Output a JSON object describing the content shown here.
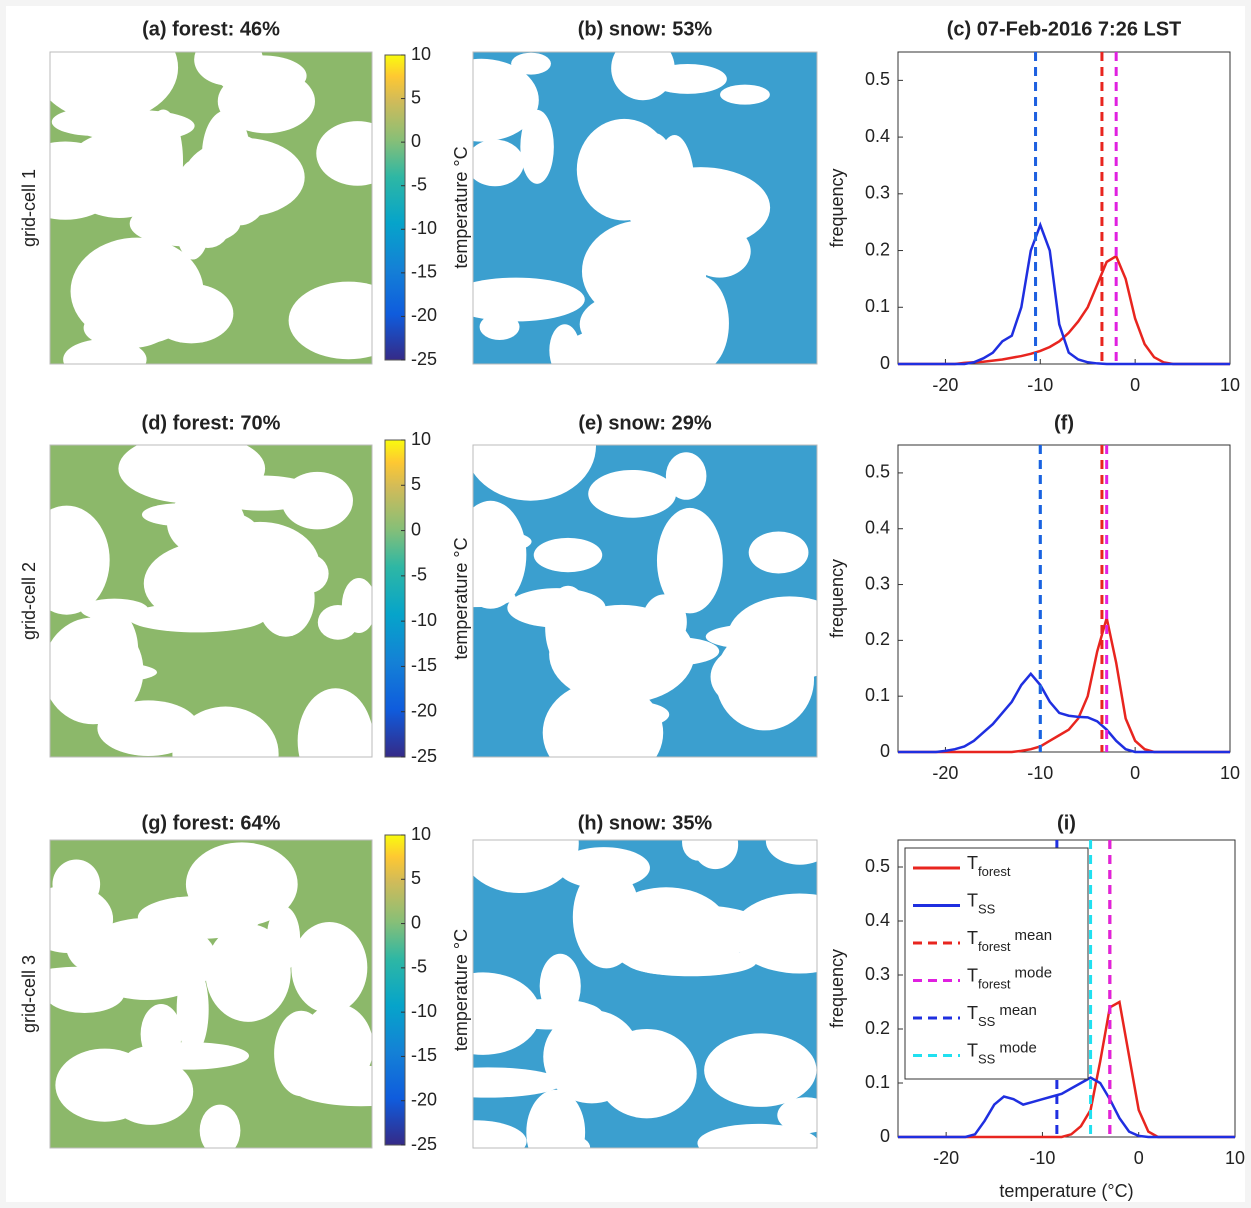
{
  "chart_data": [
    {
      "type": "map",
      "title": "(a) forest: 46%",
      "ylabel": "grid-cell 1",
      "color": "#8cb86a",
      "colorbar": {
        "label": "temperature °C",
        "lim": [
          -25,
          10
        ],
        "ticks": [
          10,
          5,
          0,
          -5,
          -10,
          -15,
          -20,
          -25
        ]
      }
    },
    {
      "type": "map",
      "title": "(b) snow: 53%",
      "color": "#3b9fcf"
    },
    {
      "type": "line",
      "title": "(c) 07-Feb-2016 7:26 LST",
      "ylabel": "frequency",
      "x": [
        -25,
        -24,
        -23,
        -22,
        -21,
        -20,
        -19,
        -18,
        -17,
        -16,
        -15,
        -14,
        -13,
        -12,
        -11,
        -10,
        -9,
        -8,
        -7,
        -6,
        -5,
        -4,
        -3,
        -2,
        -1,
        0,
        1,
        2,
        3,
        4,
        5,
        6,
        7,
        8,
        9,
        10
      ],
      "xlim": [
        -25,
        10
      ],
      "xticks": [
        -20,
        -10,
        0,
        10
      ],
      "ylim": [
        0,
        0.55
      ],
      "yticks": [
        0,
        0.1,
        0.2,
        0.3,
        0.4,
        0.5
      ],
      "series": [
        {
          "name": "T",
          "subscript": "forest",
          "color": "#e8251f",
          "values": [
            0,
            0,
            0,
            0,
            0,
            0,
            0,
            0.002,
            0.003,
            0.004,
            0.006,
            0.008,
            0.011,
            0.014,
            0.018,
            0.023,
            0.03,
            0.04,
            0.055,
            0.075,
            0.1,
            0.14,
            0.18,
            0.19,
            0.15,
            0.08,
            0.035,
            0.012,
            0.003,
            0,
            0,
            0,
            0,
            0,
            0,
            0
          ]
        },
        {
          "name": "T",
          "subscript": "SS",
          "color": "#1f2fe0",
          "values": [
            0,
            0,
            0,
            0,
            0,
            0,
            0,
            0,
            0.003,
            0.01,
            0.02,
            0.04,
            0.05,
            0.1,
            0.2,
            0.245,
            0.2,
            0.07,
            0.02,
            0.008,
            0.003,
            0.001,
            0,
            0,
            0,
            0,
            0,
            0,
            0,
            0,
            0,
            0,
            0,
            0,
            0,
            0
          ]
        }
      ],
      "vlines": [
        {
          "name": "T",
          "subscript": "forest",
          "suffix": "mean",
          "color": "#e8251f",
          "value": -3.5
        },
        {
          "name": "T",
          "subscript": "forest",
          "suffix": "mode",
          "color": "#e020e0",
          "value": -2
        },
        {
          "name": "T",
          "subscript": "SS",
          "suffix": "mode",
          "color": "#20e0f0",
          "value": -10.5
        },
        {
          "name": "T",
          "subscript": "SS",
          "suffix": "mean",
          "color": "#1f5fe0",
          "value": -10.5
        }
      ],
      "legend": false
    },
    {
      "type": "map",
      "title": "(d) forest: 70%",
      "ylabel": "grid-cell 2",
      "color": "#8cb86a",
      "colorbar": {
        "label": "temperature °C",
        "lim": [
          -25,
          10
        ],
        "ticks": [
          10,
          5,
          0,
          -5,
          -10,
          -15,
          -20,
          -25
        ]
      }
    },
    {
      "type": "map",
      "title": "(e) snow: 29%",
      "color": "#3b9fcf"
    },
    {
      "type": "line",
      "title": "(f)",
      "ylabel": "frequency",
      "x": [
        -25,
        -24,
        -23,
        -22,
        -21,
        -20,
        -19,
        -18,
        -17,
        -16,
        -15,
        -14,
        -13,
        -12,
        -11,
        -10,
        -9,
        -8,
        -7,
        -6,
        -5,
        -4,
        -3,
        -2,
        -1,
        0,
        1,
        2,
        3,
        4,
        5,
        6,
        7,
        8,
        9,
        10
      ],
      "xlim": [
        -25,
        10
      ],
      "xticks": [
        -20,
        -10,
        0,
        10
      ],
      "ylim": [
        0,
        0.55
      ],
      "yticks": [
        0,
        0.1,
        0.2,
        0.3,
        0.4,
        0.5
      ],
      "series": [
        {
          "name": "T",
          "subscript": "forest",
          "color": "#e8251f",
          "values": [
            0,
            0,
            0,
            0,
            0,
            0,
            0,
            0,
            0,
            0,
            0,
            0,
            0,
            0.002,
            0.005,
            0.01,
            0.02,
            0.03,
            0.04,
            0.06,
            0.1,
            0.18,
            0.24,
            0.16,
            0.06,
            0.02,
            0.005,
            0,
            0,
            0,
            0,
            0,
            0,
            0,
            0,
            0
          ]
        },
        {
          "name": "T",
          "subscript": "SS",
          "color": "#1f2fe0",
          "values": [
            0,
            0,
            0,
            0,
            0,
            0.002,
            0.005,
            0.01,
            0.02,
            0.035,
            0.05,
            0.07,
            0.09,
            0.12,
            0.14,
            0.12,
            0.09,
            0.07,
            0.065,
            0.063,
            0.062,
            0.055,
            0.04,
            0.02,
            0.005,
            0,
            0,
            0,
            0,
            0,
            0,
            0,
            0,
            0,
            0,
            0
          ]
        }
      ],
      "vlines": [
        {
          "name": "T",
          "subscript": "forest",
          "suffix": "mean",
          "color": "#e8251f",
          "value": -3.5
        },
        {
          "name": "T",
          "subscript": "forest",
          "suffix": "mode",
          "color": "#e020e0",
          "value": -3
        },
        {
          "name": "T",
          "subscript": "SS",
          "suffix": "mode",
          "color": "#20e0f0",
          "value": -10
        },
        {
          "name": "T",
          "subscript": "SS",
          "suffix": "mean",
          "color": "#1f5fe0",
          "value": -10
        }
      ],
      "legend": false
    },
    {
      "type": "map",
      "title": "(g) forest: 64%",
      "ylabel": "grid-cell 3",
      "color": "#8cb86a",
      "colorbar": {
        "label": "temperature °C",
        "lim": [
          -25,
          10
        ],
        "ticks": [
          10,
          5,
          0,
          -5,
          -10,
          -15,
          -20,
          -25
        ]
      }
    },
    {
      "type": "map",
      "title": "(h) snow: 35%",
      "color": "#3b9fcf"
    },
    {
      "type": "line",
      "title": "(i)",
      "ylabel": "frequency",
      "xlabel": "temperature (°C)",
      "x": [
        -25,
        -24,
        -23,
        -22,
        -21,
        -20,
        -19,
        -18,
        -17,
        -16,
        -15,
        -14,
        -13,
        -12,
        -11,
        -10,
        -9,
        -8,
        -7,
        -6,
        -5,
        -4,
        -3,
        -2,
        -1,
        0,
        1,
        2,
        3,
        4,
        5,
        6,
        7,
        8,
        9,
        10
      ],
      "xlim": [
        -25,
        10
      ],
      "xticks": [
        -20,
        -10,
        0,
        10
      ],
      "ylim": [
        0,
        0.55
      ],
      "yticks": [
        0,
        0.1,
        0.2,
        0.3,
        0.4,
        0.5
      ],
      "series": [
        {
          "name": "T",
          "subscript": "forest",
          "color": "#e8251f",
          "values": [
            0,
            0,
            0,
            0,
            0,
            0,
            0,
            0,
            0,
            0,
            0,
            0,
            0,
            0,
            0,
            0,
            0,
            0,
            0.005,
            0.02,
            0.05,
            0.14,
            0.24,
            0.25,
            0.15,
            0.05,
            0.01,
            0,
            0,
            0,
            0,
            0,
            0,
            0,
            0,
            0
          ]
        },
        {
          "name": "T",
          "subscript": "SS",
          "color": "#1f2fe0",
          "values": [
            0,
            0,
            0,
            0,
            0,
            0,
            0,
            0,
            0.005,
            0.03,
            0.06,
            0.075,
            0.07,
            0.06,
            0.065,
            0.07,
            0.075,
            0.08,
            0.09,
            0.1,
            0.11,
            0.1,
            0.07,
            0.035,
            0.01,
            0.002,
            0,
            0,
            0,
            0,
            0,
            0,
            0,
            0,
            0,
            0
          ]
        }
      ],
      "vlines": [
        {
          "name": "T",
          "subscript": "forest",
          "suffix": "mean",
          "color": "#e8251f",
          "value": -3
        },
        {
          "name": "T",
          "subscript": "forest",
          "suffix": "mode",
          "color": "#e020e0",
          "value": -3
        },
        {
          "name": "T",
          "subscript": "SS",
          "suffix": "mean",
          "color": "#1f2fe0",
          "value": -8.5
        },
        {
          "name": "T",
          "subscript": "SS",
          "suffix": "mode",
          "color": "#20e0f0",
          "value": -5
        }
      ],
      "legend": true
    }
  ]
}
